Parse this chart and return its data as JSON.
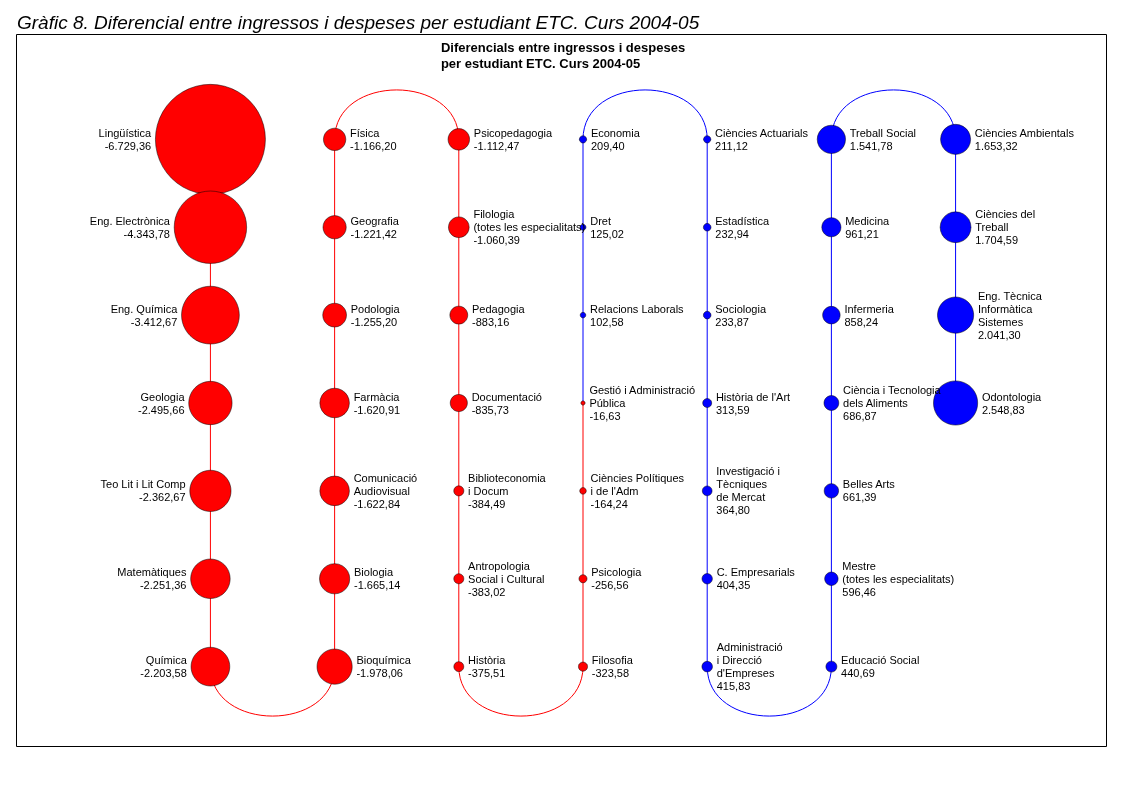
{
  "chart_data": {
    "type": "other",
    "title": "Gràfic 8. Diferencial entre ingressos i despeses per estudiant ETC. Curs 2004-05",
    "subtitle": "Diferencials entre ingressos i despeses\nper estudiant ETC. Curs 2004-05",
    "categories": [
      "Lingüística",
      "Eng. Electrònica",
      "Eng. Química",
      "Geologia",
      "Teo Lit i Lit Comp",
      "Matemàtiques",
      "Química",
      "Bioquímica",
      "Biologia",
      "Comunicació\nAudiovisual",
      "Farmàcia",
      "Podologia",
      "Geografia",
      "Física",
      "Psicopedagogia",
      "Filologia\n(totes les especialitats)",
      "Pedagogia",
      "Documentació",
      "Biblioteconomia\ni Docum",
      "Antropologia\nSocial i Cultural",
      "Història",
      "Filosofia",
      "Psicologia",
      "Ciències Polítiques\ni de l'Adm",
      "Gestió i Administració\nPública",
      "Relacions Laborals",
      "Dret",
      "Economia",
      "Ciències Actuarials",
      "Estadística",
      "Sociologia",
      "Història de l'Art",
      "Investigació i\nTècniques\nde Mercat",
      "C. Empresarials",
      "Administració\ni Direcció\nd'Empreses",
      "Educació Social",
      "Mestre\n(totes les especialitats)",
      "Belles Arts",
      "Ciència i Tecnologia\ndels Aliments",
      "Infermeria",
      "Medicina",
      "Treball Social",
      "Ciències Ambientals",
      "Ciències del\nTreball",
      "Eng. Tècnica\nInformàtica\nSistemes",
      "Odontologia"
    ],
    "values": [
      -6729.36,
      -4343.78,
      -3412.67,
      -2495.66,
      -2362.67,
      -2251.36,
      -2203.58,
      -1978.06,
      -1665.14,
      -1622.84,
      -1620.91,
      -1255.2,
      -1221.42,
      -1166.2,
      -1112.47,
      -1060.39,
      -883.16,
      -835.73,
      -384.49,
      -383.02,
      -375.51,
      -323.58,
      -256.56,
      -164.24,
      -16.63,
      102.58,
      125.02,
      209.4,
      211.12,
      232.94,
      233.87,
      313.59,
      364.8,
      404.35,
      415.83,
      440.69,
      596.46,
      661.39,
      686.87,
      858.24,
      961.21,
      1541.78,
      1653.32,
      1704.59,
      2041.3,
      2548.83
    ],
    "value_labels": [
      "-6.729,36",
      "-4.343,78",
      "-3.412,67",
      "-2.495,66",
      "-2.362,67",
      "-2.251,36",
      "-2.203,58",
      "-1.978,06",
      "-1.665,14",
      "-1.622,84",
      "-1.620,91",
      "-1.255,20",
      "-1.221,42",
      "-1.166,20",
      "-1.112,47",
      "-1.060,39",
      "-883,16",
      "-835,73",
      "-384,49",
      "-383,02",
      "-375,51",
      "-323,58",
      "-256,56",
      "-164,24",
      "-16,63",
      "102,58",
      "125,02",
      "209,40",
      "211,12",
      "232,94",
      "233,87",
      "313,59",
      "364,80",
      "404,35",
      "415,83",
      "440,69",
      "596,46",
      "661,39",
      "686,87",
      "858,24",
      "961,21",
      "1.541,78",
      "1.653,32",
      "1.704,59",
      "2.041,30",
      "2.548,83"
    ],
    "colors": [
      "#ff0000",
      "#ff0000",
      "#ff0000",
      "#ff0000",
      "#ff0000",
      "#ff0000",
      "#ff0000",
      "#ff0000",
      "#ff0000",
      "#ff0000",
      "#ff0000",
      "#ff0000",
      "#ff0000",
      "#ff0000",
      "#ff0000",
      "#ff0000",
      "#ff0000",
      "#ff0000",
      "#ff0000",
      "#ff0000",
      "#ff0000",
      "#ff0000",
      "#ff0000",
      "#ff0000",
      "#ff0000",
      "#0000ff",
      "#0000ff",
      "#0000ff",
      "#0000ff",
      "#0000ff",
      "#0000ff",
      "#0000ff",
      "#0000ff",
      "#0000ff",
      "#0000ff",
      "#0000ff",
      "#0000ff",
      "#0000ff",
      "#0000ff",
      "#0000ff",
      "#0000ff",
      "#0000ff",
      "#0000ff",
      "#0000ff",
      "#0000ff",
      "#0000ff"
    ]
  }
}
